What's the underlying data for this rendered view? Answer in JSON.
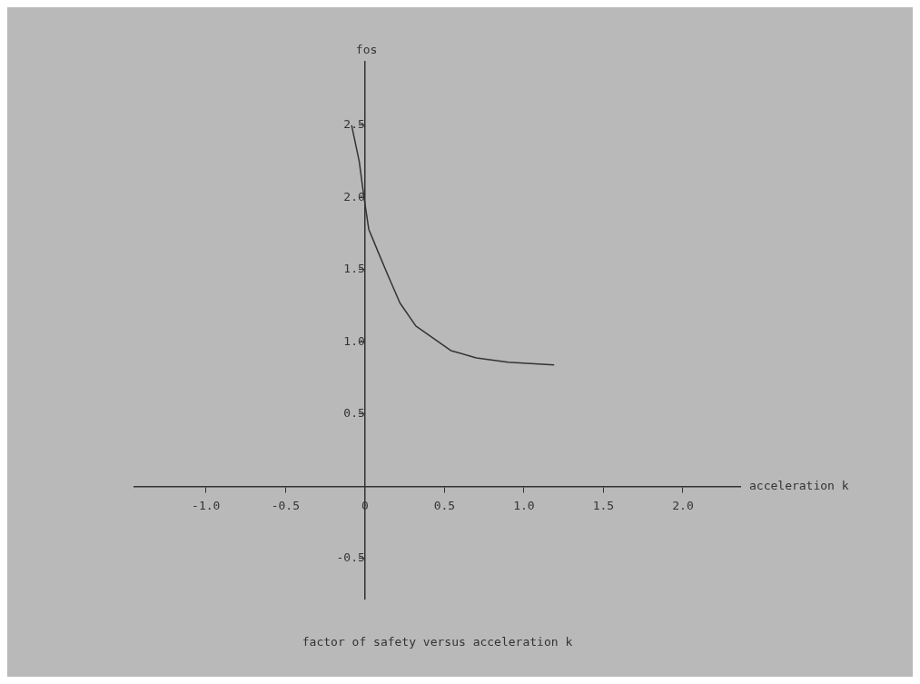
{
  "chart_data": {
    "type": "line",
    "title": "factor of safety versus acceleration k",
    "xlabel": "acceleration k",
    "ylabel": "fos",
    "x": [
      -0.084,
      -0.036,
      -0.006,
      0.024,
      0.084,
      0.145,
      0.22,
      0.32,
      0.54,
      0.7,
      0.9,
      1.19
    ],
    "series": [
      {
        "color": "#333333",
        "values": [
          2.5,
          2.25,
          2.0,
          1.78,
          1.62,
          1.46,
          1.27,
          1.11,
          0.94,
          0.89,
          0.86,
          0.84
        ]
      }
    ],
    "xlim": [
      -1.45,
      2.36
    ],
    "ylim": [
      -0.78,
      2.94
    ],
    "xticks": [
      {
        "value": -1,
        "label": "-1.0"
      },
      -0.5,
      {
        "value": 0,
        "label": "0"
      },
      0.5,
      {
        "value": 1,
        "label": "1.0"
      },
      1.5,
      {
        "value": 2,
        "label": "2.0"
      }
    ],
    "yticks": [
      -0.5,
      0.5,
      {
        "value": 1,
        "label": "1.0"
      },
      1.5,
      {
        "value": 2,
        "label": "2.0"
      },
      2.5
    ],
    "grid": false,
    "legend": false,
    "marker": "none",
    "line_style": "solid"
  }
}
